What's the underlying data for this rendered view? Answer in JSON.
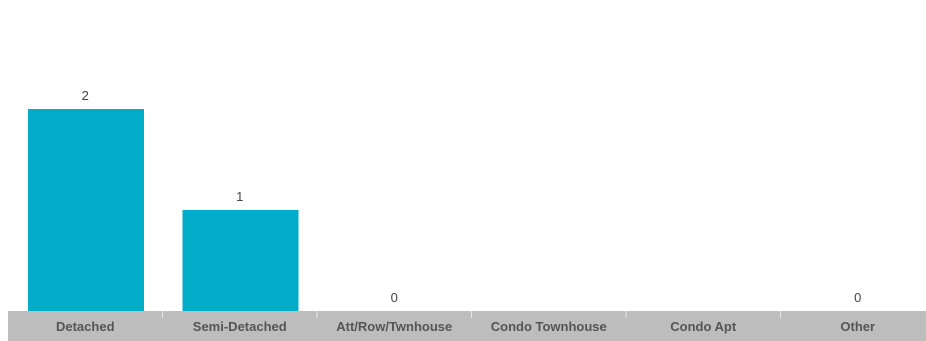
{
  "chart_data": {
    "type": "bar",
    "categories": [
      "Detached",
      "Semi-Detached",
      "Att/Row/Twnhouse",
      "Condo Townhouse",
      "Condo Apt",
      "Other"
    ],
    "values": [
      2,
      1,
      0,
      null,
      null,
      0
    ],
    "value_labels": [
      "2",
      "1",
      "0",
      "",
      "",
      "0"
    ],
    "ylim": [
      0,
      2
    ],
    "grid": false,
    "legend": "none",
    "colors": {
      "bar": "#00acc8",
      "axis_band": "#bdbdbd",
      "category_text": "#555555",
      "value_text": "#444444",
      "separator": "#e6e6e6"
    }
  }
}
